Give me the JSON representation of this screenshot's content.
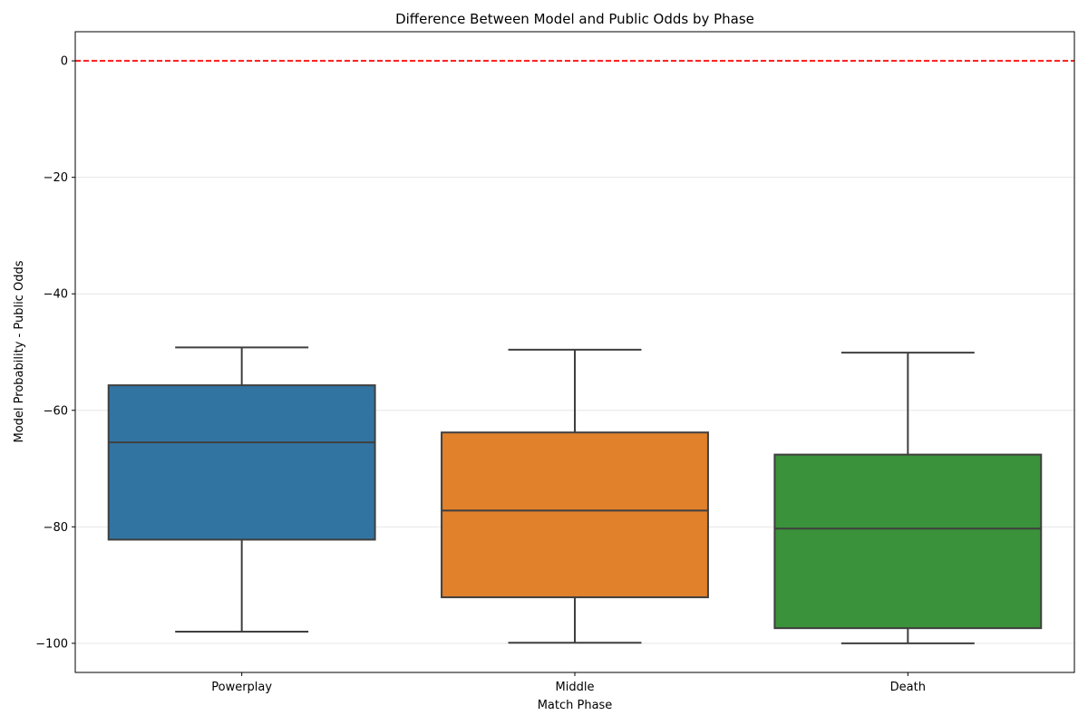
{
  "chart_data": {
    "type": "box",
    "title": "Difference Between Model and Public Odds by Phase",
    "xlabel": "Match Phase",
    "ylabel": "Model Probability - Public Odds",
    "ylim": [
      -105,
      5
    ],
    "yticks": [
      0,
      -20,
      -40,
      -60,
      -80,
      -100
    ],
    "ytick_labels": [
      "0",
      "−20",
      "−40",
      "−60",
      "−80",
      "−100"
    ],
    "categories": [
      "Powerplay",
      "Middle",
      "Death"
    ],
    "colors": [
      "#3274a1",
      "#e1812c",
      "#3a923a"
    ],
    "boxes": [
      {
        "category": "Powerplay",
        "whislo": -98,
        "q1": -82.2,
        "median": -65.5,
        "q3": -55.7,
        "whishi": -49.2
      },
      {
        "category": "Middle",
        "whislo": -99.9,
        "q1": -92.1,
        "median": -77.2,
        "q3": -63.8,
        "whishi": -49.6
      },
      {
        "category": "Death",
        "whislo": -100,
        "q1": -97.4,
        "median": -80.3,
        "q3": -67.6,
        "whishi": -50.1
      }
    ],
    "reference_line": {
      "y": 0,
      "color": "#ff0000",
      "style": "dashed"
    },
    "grid": "y-major",
    "legend": "none"
  }
}
